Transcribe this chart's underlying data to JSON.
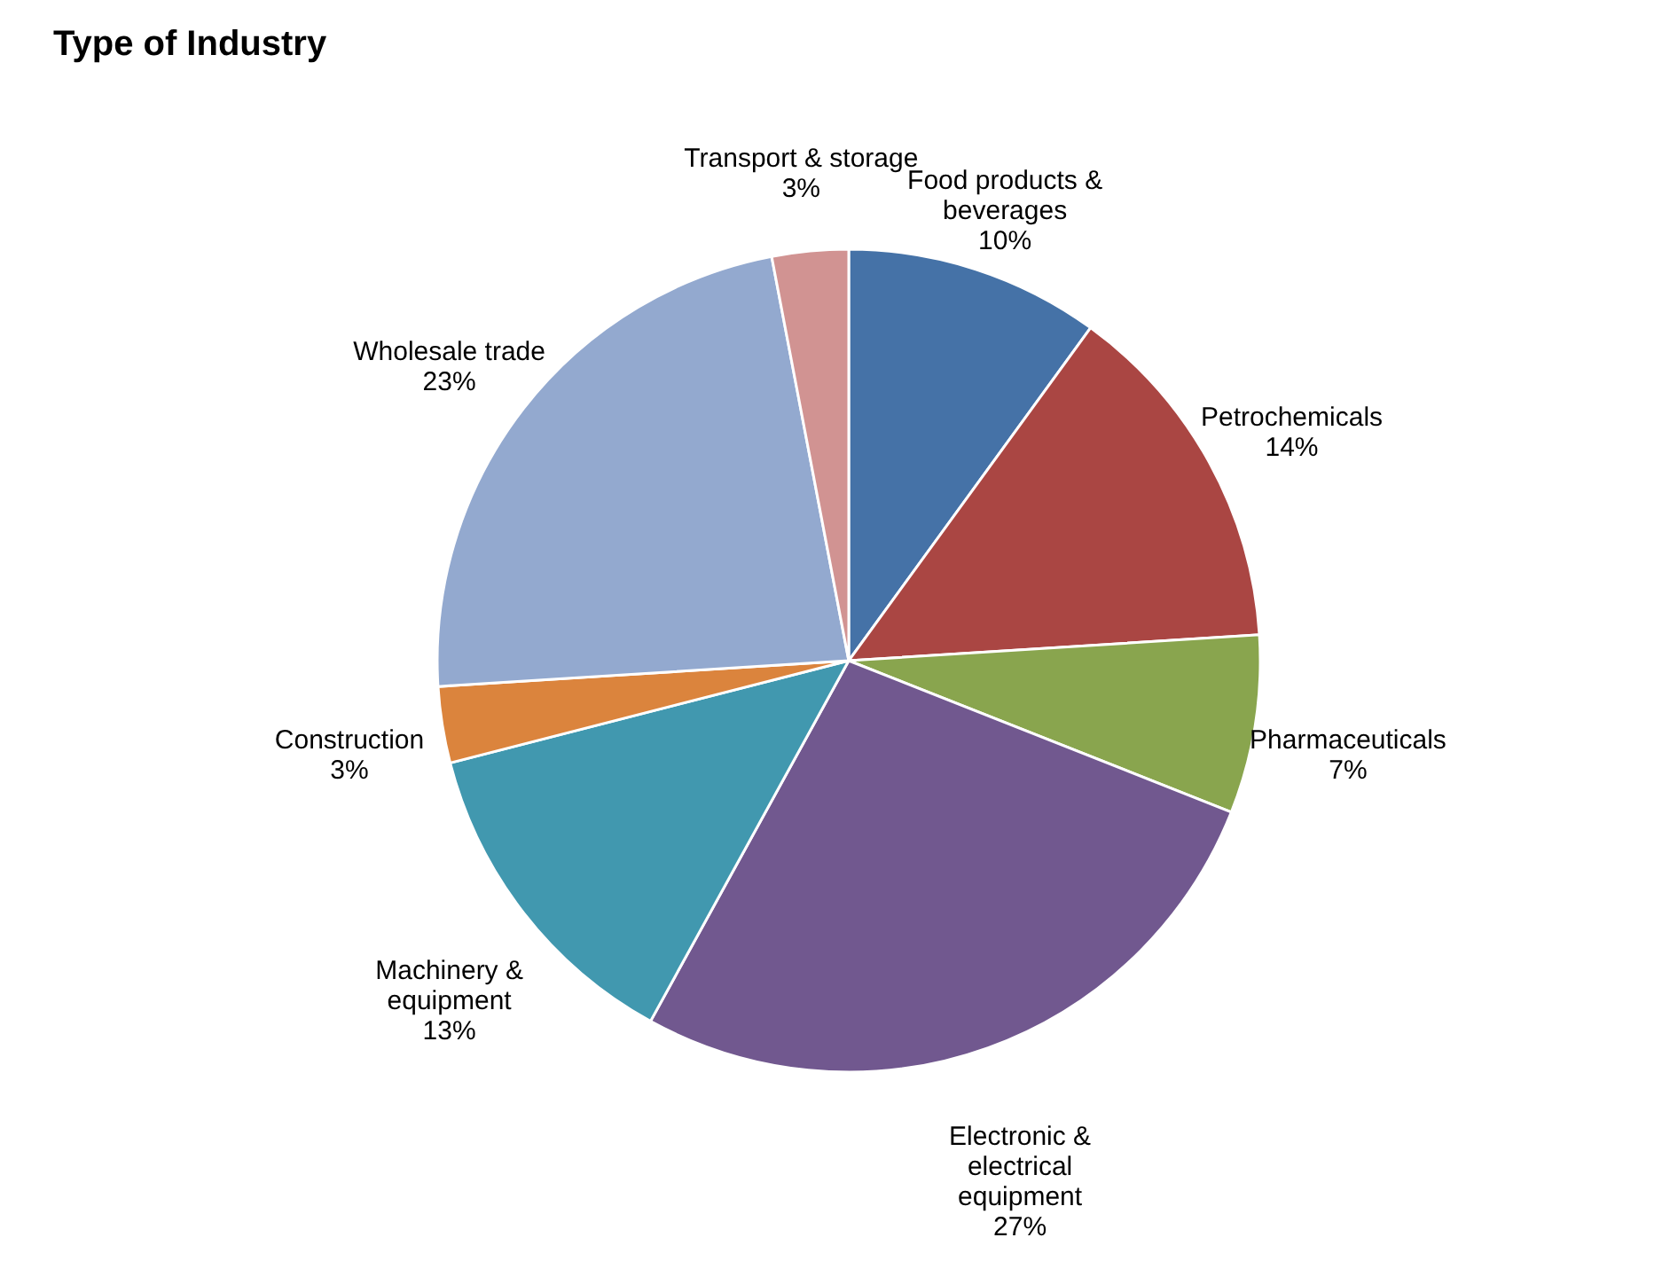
{
  "chart_data": {
    "type": "pie",
    "title": "Type of Industry",
    "categories": [
      "Food products &\nbeverages",
      "Petrochemicals",
      "Pharmaceuticals",
      "Electronic &\nelectrical\nequipment",
      "Machinery &\nequipment",
      "Construction",
      "Wholesale trade",
      "Transport & storage"
    ],
    "values": [
      10,
      14,
      7,
      27,
      13,
      3,
      23,
      3
    ],
    "value_labels": [
      "10%",
      "14%",
      "7%",
      "27%",
      "13%",
      "3%",
      "23%",
      "3%"
    ],
    "colors": [
      "#4572a7",
      "#aa4643",
      "#89a54e",
      "#71588f",
      "#4198af",
      "#db843d",
      "#93a9cf",
      "#d19392"
    ],
    "legend": false
  }
}
